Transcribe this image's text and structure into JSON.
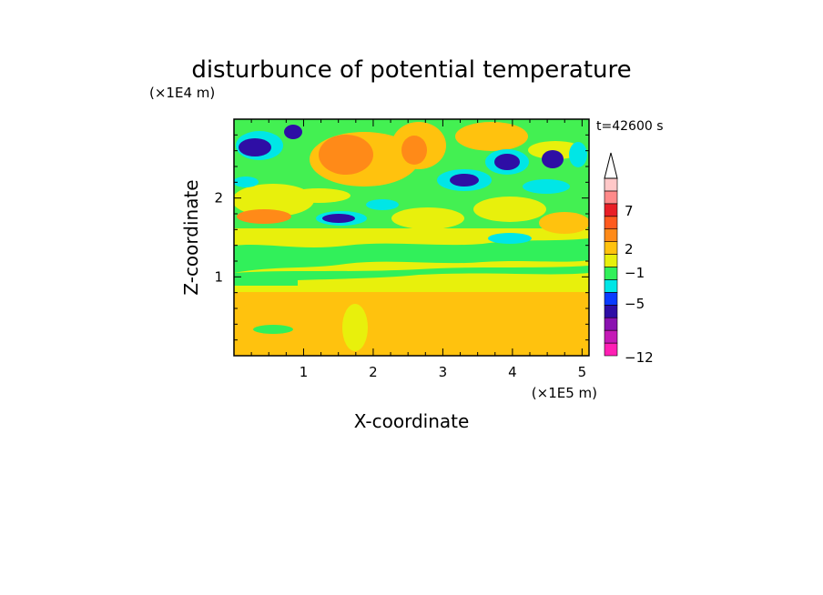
{
  "chart_data": {
    "type": "heatmap",
    "title": "disturbunce of potential temperature",
    "xlabel": "X-coordinate",
    "ylabel": "Z-coordinate",
    "x_unit": "(×1E5 m)",
    "y_unit": "(×1E4 m)",
    "xlim": [
      0,
      5.1
    ],
    "ylim": [
      0,
      3.0
    ],
    "x_ticks": [
      "1",
      "2",
      "3",
      "4",
      "5"
    ],
    "y_ticks": [
      "1",
      "2"
    ],
    "time_label": "t=42600 s",
    "colorbar": {
      "labels": [
        "7",
        "2",
        "−1",
        "−5",
        "−12"
      ],
      "colors": [
        "#ff1fb4",
        "#c51ab6",
        "#8a12b0",
        "#2e0ea5",
        "#0a3cff",
        "#00e6e6",
        "#31f05a",
        "#e8f00c",
        "#ffc20e",
        "#ff8a18",
        "#ff5a1e",
        "#e81e26",
        "#ff8a8a",
        "#ffc8c8"
      ]
    }
  }
}
